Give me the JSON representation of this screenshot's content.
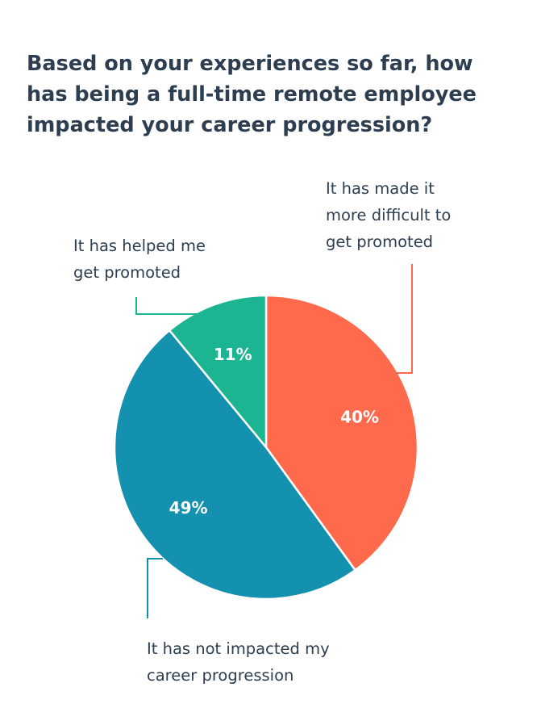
{
  "title": {
    "lines": [
      "Based on your experiences so far, how",
      "has being a full-time remote employee",
      "impacted your career progression?"
    ]
  },
  "chart_data": {
    "type": "pie",
    "title": "Based on your experiences so far, how has being a full-time remote employee impacted your career progression?",
    "slices": [
      {
        "label_lines": [
          "It has made it",
          "more difficult to",
          "get promoted"
        ],
        "value": 40,
        "value_label": "40%",
        "color": "#ff6a4c"
      },
      {
        "label_lines": [
          "It has not impacted my",
          "career progression"
        ],
        "value": 49,
        "value_label": "49%",
        "color": "#1591b0"
      },
      {
        "label_lines": [
          "It has helped me",
          "get promoted"
        ],
        "value": 11,
        "value_label": "11%",
        "color": "#1cb592"
      }
    ]
  }
}
